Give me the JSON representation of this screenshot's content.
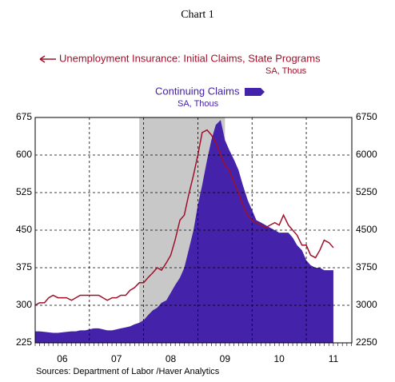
{
  "chart_data": {
    "type": "line",
    "title": "Chart 1",
    "source": "Sources:  Department of Labor /Haver Analytics",
    "x": [
      2006.0,
      2006.08,
      2006.17,
      2006.25,
      2006.33,
      2006.42,
      2006.5,
      2006.58,
      2006.67,
      2006.75,
      2006.83,
      2006.92,
      2007.0,
      2007.08,
      2007.17,
      2007.25,
      2007.33,
      2007.42,
      2007.5,
      2007.58,
      2007.67,
      2007.75,
      2007.83,
      2007.92,
      2008.0,
      2008.08,
      2008.17,
      2008.25,
      2008.33,
      2008.42,
      2008.5,
      2008.58,
      2008.67,
      2008.75,
      2008.83,
      2008.92,
      2009.0,
      2009.08,
      2009.17,
      2009.25,
      2009.33,
      2009.42,
      2009.5,
      2009.58,
      2009.67,
      2009.75,
      2009.83,
      2009.92,
      2010.0,
      2010.08,
      2010.17,
      2010.25,
      2010.33,
      2010.42,
      2010.5,
      2010.58,
      2010.67,
      2010.75,
      2010.83,
      2010.92,
      2011.0,
      2011.08,
      2011.17,
      2011.25,
      2011.33,
      2011.42,
      2011.5
    ],
    "series": [
      {
        "name": "Unemployment Insurance: Initial Claims, State Programs",
        "units": "SA, Thous",
        "color": "#a0102a",
        "axis": "y",
        "type": "line",
        "values": [
          300,
          305,
          305,
          315,
          320,
          315,
          315,
          315,
          310,
          315,
          320,
          320,
          320,
          320,
          320,
          315,
          310,
          315,
          315,
          320,
          320,
          330,
          335,
          345,
          345,
          355,
          365,
          375,
          370,
          385,
          400,
          430,
          470,
          480,
          520,
          560,
          600,
          645,
          650,
          640,
          625,
          600,
          580,
          570,
          545,
          525,
          500,
          480,
          470,
          465,
          460,
          455,
          460,
          465,
          460,
          480,
          460,
          450,
          440,
          420,
          420,
          400,
          395,
          410,
          430,
          425,
          415
        ]
      },
      {
        "name": "Continuing Claims",
        "units": "SA, Thous",
        "color": "#4422aa",
        "axis": "y2",
        "type": "area",
        "values": [
          2480,
          2480,
          2470,
          2460,
          2450,
          2450,
          2460,
          2470,
          2480,
          2480,
          2500,
          2500,
          2520,
          2540,
          2540,
          2520,
          2500,
          2500,
          2520,
          2540,
          2560,
          2580,
          2620,
          2650,
          2700,
          2800,
          2900,
          2950,
          3050,
          3100,
          3250,
          3400,
          3550,
          3750,
          4100,
          4500,
          5000,
          5400,
          5900,
          6300,
          6600,
          6700,
          6300,
          6100,
          5900,
          5700,
          5400,
          5100,
          4900,
          4700,
          4650,
          4600,
          4550,
          4500,
          4450,
          4450,
          4450,
          4350,
          4200,
          4100,
          3900,
          3800,
          3750,
          3750,
          3700,
          3700,
          3700
        ]
      }
    ],
    "xlim": [
      2006,
      2011.84
    ],
    "xticks": [
      {
        "value": 2006.5,
        "label": "06"
      },
      {
        "value": 2007.5,
        "label": "07"
      },
      {
        "value": 2008.5,
        "label": "08"
      },
      {
        "value": 2009.5,
        "label": "09"
      },
      {
        "value": 2010.5,
        "label": "10"
      },
      {
        "value": 2011.5,
        "label": "11"
      }
    ],
    "xgrid": [
      2007,
      2008,
      2009,
      2010,
      2011
    ],
    "ylim": [
      225,
      675
    ],
    "yticks": [
      225,
      300,
      375,
      450,
      525,
      600,
      675
    ],
    "y2lim": [
      2250,
      6750
    ],
    "y2ticks": [
      2250,
      3000,
      3750,
      4500,
      5250,
      6000,
      6750
    ],
    "shading": [
      2007.92,
      2009.5
    ],
    "shading_color": "#c8c8c8",
    "grid": true
  }
}
